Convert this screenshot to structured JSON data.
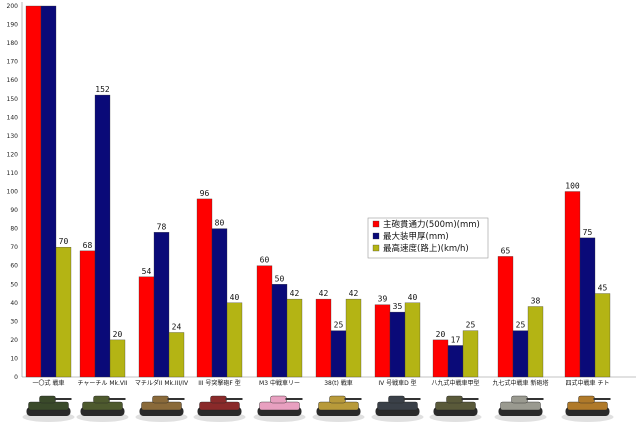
{
  "chart_data": {
    "type": "bar",
    "categories": [
      "一〇式 戦車",
      "チャーチル Mk.VII",
      "マチルダII Mk.III/IV",
      "III 号突撃砲F 型",
      "M3 中戦車リー",
      "38(t) 戦車",
      "IV 号戦車D 型",
      "八九式中戦車甲型",
      "九七式中戦車 新砲塔",
      "四式中戦車 チト"
    ],
    "series": [
      {
        "name": "主砲貫通力(500m)(mm)",
        "color": "#ff0000",
        "values": [
          207,
          68,
          54,
          96,
          60,
          42,
          39,
          20,
          65,
          100
        ]
      },
      {
        "name": "最大装甲厚(mm)",
        "color": "#0a0a78",
        "values": [
          207,
          152,
          78,
          80,
          50,
          25,
          35,
          17,
          25,
          75
        ]
      },
      {
        "name": "最高速度(路上)(km/h)",
        "color": "#b4b414",
        "values": [
          70,
          20,
          24,
          40,
          42,
          42,
          40,
          25,
          38,
          45
        ]
      }
    ],
    "value_labels": [
      [
        "",
        "",
        "70"
      ],
      [
        "68",
        "152",
        "20"
      ],
      [
        "54",
        "78",
        "24"
      ],
      [
        "96",
        "80",
        "40"
      ],
      [
        "60",
        "50",
        "42"
      ],
      [
        "42",
        "25",
        "42"
      ],
      [
        "39",
        "35",
        "40"
      ],
      [
        "20",
        "17",
        "25"
      ],
      [
        "65",
        "25",
        "38"
      ],
      [
        "100",
        "75",
        "45"
      ]
    ],
    "ylim": [
      0,
      200
    ],
    "yticks": [
      0,
      10,
      20,
      30,
      40,
      50,
      60,
      70,
      80,
      90,
      100,
      110,
      120,
      130,
      140,
      150,
      160,
      170,
      180,
      190,
      200
    ],
    "legend_position": "center-right",
    "tank_colors": [
      "#3a4a2a",
      "#4e5a2e",
      "#8a6a3a",
      "#8a2a2a",
      "#e8a0c0",
      "#b89a3a",
      "#3a4048",
      "#5a5a3a",
      "#9a9a90",
      "#b07a2a"
    ],
    "grid": false
  }
}
